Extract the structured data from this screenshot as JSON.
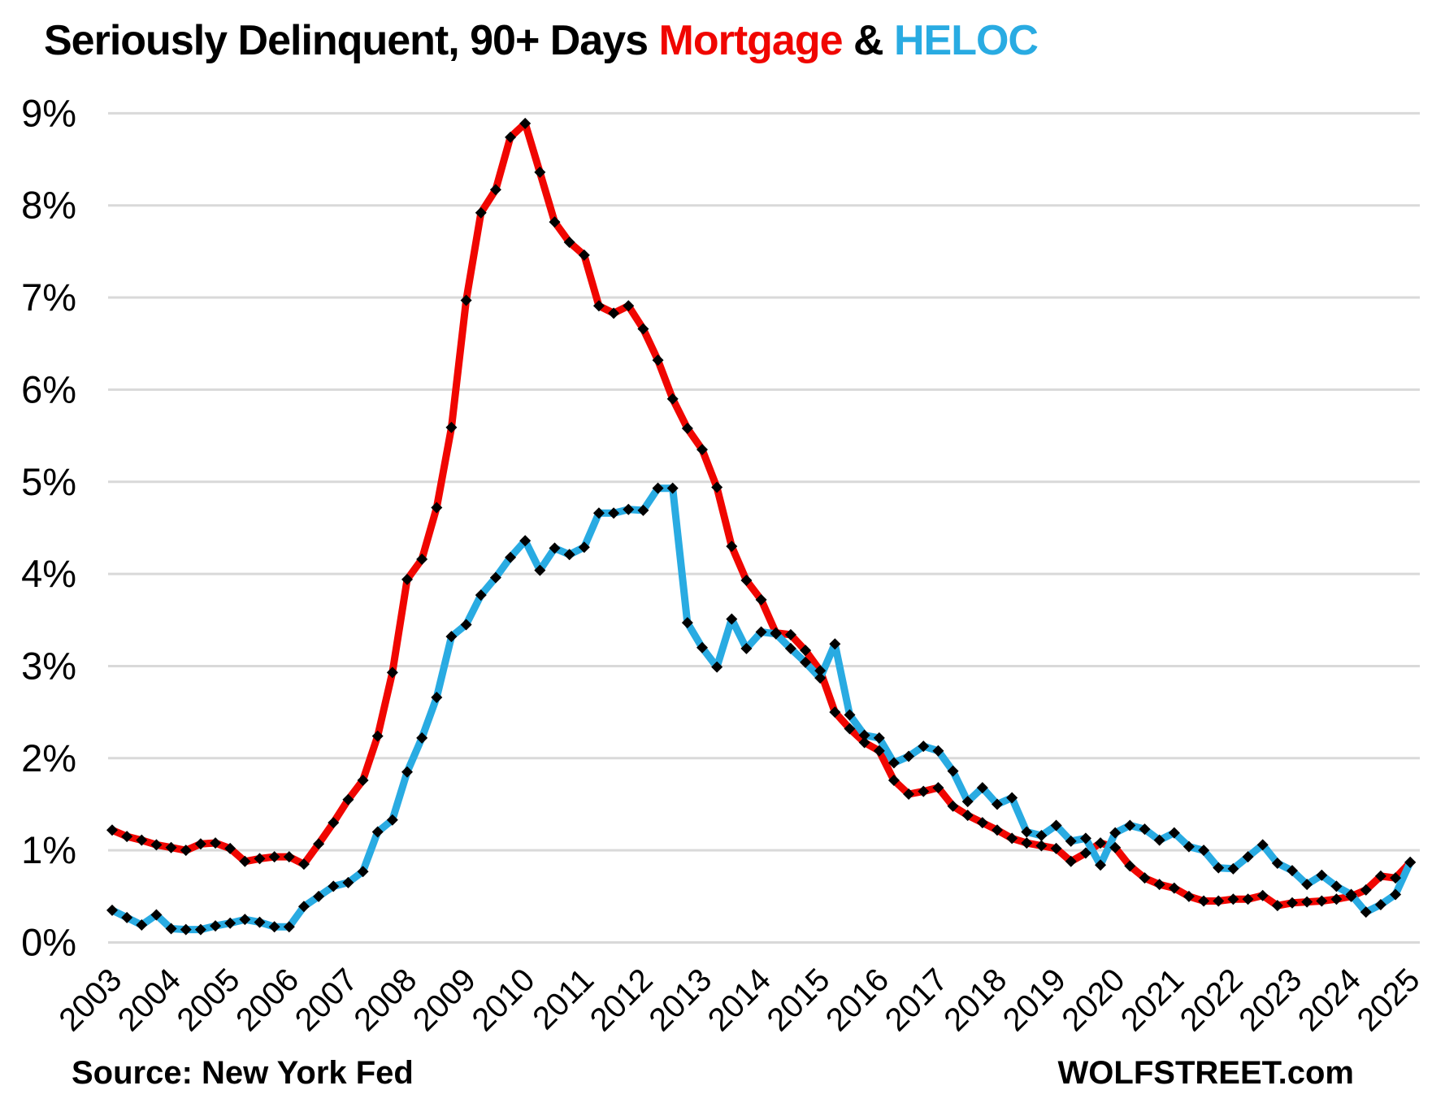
{
  "title": {
    "prefix": "Seriously Delinquent, 90+ Days ",
    "mortgage_word": "Mortgage",
    "ampersand": " & ",
    "heloc_word": "HELOC"
  },
  "footer": {
    "source": "Source: New York Fed",
    "brand": "WOLFSTREET.com"
  },
  "colors": {
    "mortgage": "#f00600",
    "heloc": "#29abe2",
    "gridline": "#d9d9d9",
    "marker": "#000000",
    "text": "#000000"
  },
  "chart_data": {
    "type": "line",
    "title": "Seriously Delinquent, 90+ Days Mortgage & HELOC",
    "xlabel": "",
    "ylabel": "",
    "frequency": "quarterly",
    "x_start_year": 2003,
    "x_end": "2025 Q1",
    "ylim": [
      0,
      9
    ],
    "grid": true,
    "legend_position": "in-title",
    "y_tick_labels": [
      "0%",
      "1%",
      "2%",
      "3%",
      "4%",
      "5%",
      "6%",
      "7%",
      "8%",
      "9%"
    ],
    "x_tick_labels": [
      "2003",
      "2004",
      "2005",
      "2006",
      "2007",
      "2008",
      "2009",
      "2010",
      "2011",
      "2012",
      "2013",
      "2014",
      "2015",
      "2016",
      "2017",
      "2018",
      "2019",
      "2020",
      "2021",
      "2022",
      "2023",
      "2024",
      "2025"
    ],
    "marker_shape": "diamond",
    "series": [
      {
        "name": "Mortgage",
        "color": "#f00600",
        "values": [
          1.22,
          1.15,
          1.11,
          1.06,
          1.03,
          1.0,
          1.07,
          1.08,
          1.02,
          0.88,
          0.91,
          0.93,
          0.93,
          0.85,
          1.07,
          1.3,
          1.55,
          1.76,
          2.24,
          2.93,
          3.94,
          4.16,
          4.72,
          5.59,
          6.97,
          7.92,
          8.17,
          8.74,
          8.89,
          8.36,
          7.82,
          7.6,
          7.46,
          6.91,
          6.83,
          6.91,
          6.66,
          6.32,
          5.9,
          5.58,
          5.35,
          4.94,
          4.3,
          3.93,
          3.72,
          3.36,
          3.34,
          3.17,
          2.95,
          2.5,
          2.32,
          2.17,
          2.08,
          1.76,
          1.61,
          1.64,
          1.68,
          1.48,
          1.38,
          1.3,
          1.22,
          1.13,
          1.08,
          1.05,
          1.02,
          0.88,
          0.97,
          1.08,
          1.03,
          0.83,
          0.7,
          0.63,
          0.59,
          0.5,
          0.45,
          0.45,
          0.47,
          0.47,
          0.51,
          0.4,
          0.43,
          0.44,
          0.45,
          0.47,
          0.5,
          0.57,
          0.72,
          0.7,
          0.87
        ]
      },
      {
        "name": "HELOC",
        "color": "#29abe2",
        "values": [
          0.35,
          0.27,
          0.19,
          0.3,
          0.15,
          0.14,
          0.14,
          0.18,
          0.21,
          0.25,
          0.22,
          0.17,
          0.17,
          0.39,
          0.5,
          0.61,
          0.65,
          0.77,
          1.2,
          1.33,
          1.85,
          2.22,
          2.66,
          3.32,
          3.45,
          3.77,
          3.96,
          4.18,
          4.36,
          4.04,
          4.28,
          4.21,
          4.29,
          4.66,
          4.66,
          4.7,
          4.69,
          4.93,
          4.93,
          3.47,
          3.2,
          2.99,
          3.51,
          3.19,
          3.37,
          3.35,
          3.19,
          3.04,
          2.87,
          3.24,
          2.47,
          2.25,
          2.22,
          1.95,
          2.02,
          2.13,
          2.08,
          1.86,
          1.53,
          1.68,
          1.5,
          1.57,
          1.2,
          1.16,
          1.27,
          1.1,
          1.13,
          0.84,
          1.19,
          1.27,
          1.23,
          1.11,
          1.19,
          1.04,
          1.0,
          0.81,
          0.8,
          0.93,
          1.06,
          0.86,
          0.78,
          0.63,
          0.73,
          0.61,
          0.52,
          0.33,
          0.41,
          0.52,
          0.87
        ]
      }
    ]
  },
  "layout_note": "gridlines at each 1% from 0 to 9"
}
